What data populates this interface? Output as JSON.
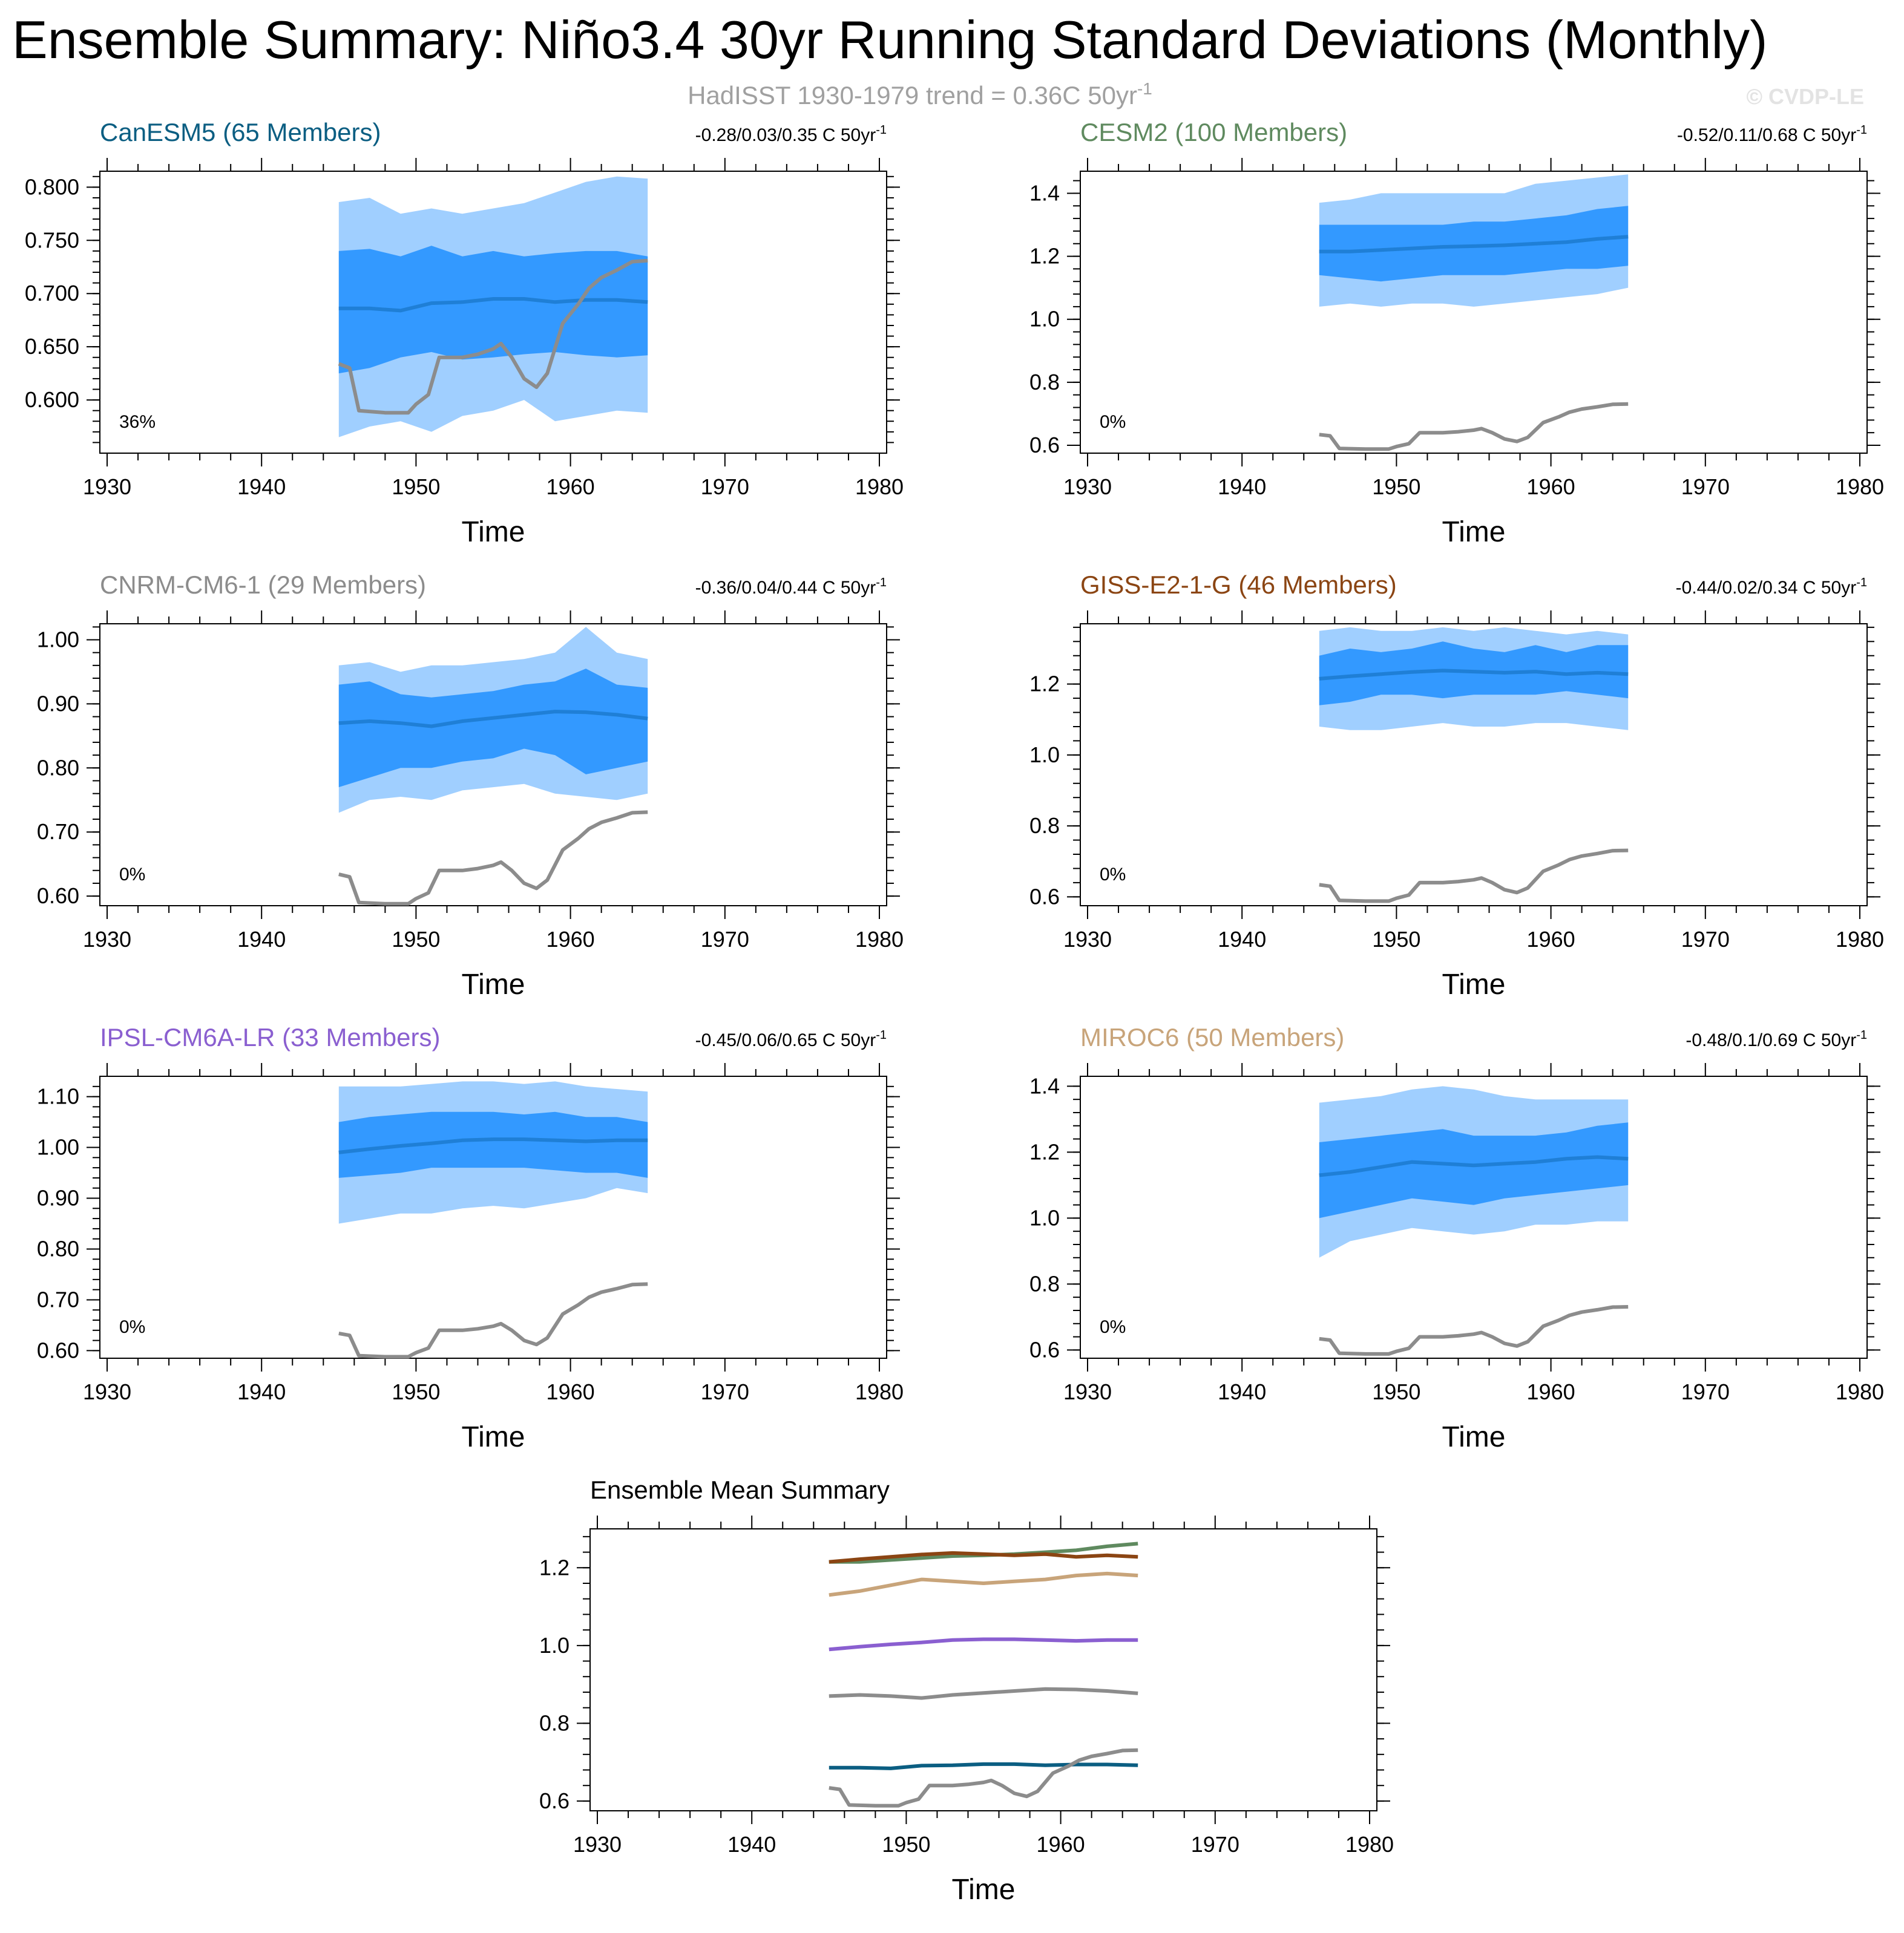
{
  "title": "Ensemble Summary: Niño3.4 30yr Running Standard Deviations (Monthly)",
  "subtitle": {
    "text": "HadISST 1930-1979 trend = 0.36C 50yr",
    "sup": "-1"
  },
  "copyright": "© CVDP-LE",
  "colors": {
    "outer_band": "#a0cfff",
    "inner_band": "#3399ff",
    "mean_line": "#1f7fd6",
    "obs_line": "#8c8c8c"
  },
  "xlabel": "Time",
  "chart_data": [
    {
      "type": "area",
      "title": "CanESM5 (65 Members)",
      "title_color": "#0b5e82",
      "trend_text": "-0.28/0.03/0.35 C 50yr",
      "trend_sup": "-1",
      "percent_label": "36%",
      "xlabel": "Time",
      "xlim": [
        1930,
        1980
      ],
      "xticks": [
        1930,
        1940,
        1950,
        1960,
        1970,
        1980
      ],
      "ylim": [
        0.55,
        0.815
      ],
      "yticks": [
        "0.800",
        "0.750",
        "0.700",
        "0.650",
        "0.600"
      ],
      "ytick_values": [
        0.8,
        0.75,
        0.7,
        0.65,
        0.6
      ],
      "x": [
        1945,
        1947,
        1949,
        1951,
        1953,
        1955,
        1957,
        1959,
        1961,
        1963,
        1965
      ],
      "outer_upper": [
        0.786,
        0.79,
        0.775,
        0.78,
        0.775,
        0.78,
        0.785,
        0.795,
        0.805,
        0.81,
        0.808
      ],
      "inner_upper": [
        0.74,
        0.742,
        0.735,
        0.745,
        0.735,
        0.74,
        0.735,
        0.738,
        0.74,
        0.74,
        0.735
      ],
      "ensemble_mean": [
        0.686,
        0.686,
        0.684,
        0.691,
        0.692,
        0.695,
        0.695,
        0.692,
        0.694,
        0.694,
        0.692
      ],
      "inner_lower": [
        0.625,
        0.63,
        0.64,
        0.645,
        0.638,
        0.64,
        0.643,
        0.645,
        0.642,
        0.64,
        0.642
      ],
      "outer_lower": [
        0.565,
        0.575,
        0.58,
        0.57,
        0.585,
        0.59,
        0.6,
        0.58,
        0.585,
        0.59,
        0.588
      ],
      "obs_x": [
        1945,
        1945.7,
        1946.3,
        1948,
        1949.5,
        1950,
        1950.8,
        1951.5,
        1953,
        1954,
        1955,
        1955.5,
        1956.2,
        1957,
        1957.8,
        1958.5,
        1959.5,
        1960.5,
        1961.2,
        1962,
        1963,
        1964,
        1965
      ],
      "obs_y": [
        0.634,
        0.63,
        0.59,
        0.588,
        0.588,
        0.596,
        0.605,
        0.64,
        0.64,
        0.643,
        0.648,
        0.653,
        0.64,
        0.62,
        0.612,
        0.625,
        0.672,
        0.69,
        0.705,
        0.715,
        0.722,
        0.73,
        0.731
      ]
    },
    {
      "type": "area",
      "title": "CESM2 (100 Members)",
      "title_color": "#5f8a5f",
      "trend_text": "-0.52/0.11/0.68 C 50yr",
      "trend_sup": "-1",
      "percent_label": "0%",
      "xlabel": "Time",
      "xlim": [
        1930,
        1980
      ],
      "xticks": [
        1930,
        1940,
        1950,
        1960,
        1970,
        1980
      ],
      "ylim": [
        0.575,
        1.47
      ],
      "yticks": [
        "1.4",
        "1.2",
        "1.0",
        "0.8",
        "0.6"
      ],
      "ytick_values": [
        1.4,
        1.2,
        1.0,
        0.8,
        0.6
      ],
      "x": [
        1945,
        1947,
        1949,
        1951,
        1953,
        1955,
        1957,
        1959,
        1961,
        1963,
        1965
      ],
      "outer_upper": [
        1.37,
        1.38,
        1.4,
        1.4,
        1.4,
        1.4,
        1.4,
        1.43,
        1.44,
        1.45,
        1.46
      ],
      "inner_upper": [
        1.3,
        1.3,
        1.3,
        1.3,
        1.3,
        1.31,
        1.31,
        1.32,
        1.33,
        1.35,
        1.36
      ],
      "ensemble_mean": [
        1.215,
        1.215,
        1.22,
        1.225,
        1.23,
        1.232,
        1.235,
        1.24,
        1.245,
        1.255,
        1.262
      ],
      "inner_lower": [
        1.14,
        1.13,
        1.12,
        1.13,
        1.14,
        1.14,
        1.14,
        1.15,
        1.16,
        1.16,
        1.17
      ],
      "outer_lower": [
        1.04,
        1.05,
        1.04,
        1.05,
        1.05,
        1.04,
        1.05,
        1.06,
        1.07,
        1.08,
        1.1
      ],
      "obs_x": [
        1945,
        1945.7,
        1946.3,
        1948,
        1949.5,
        1950,
        1950.8,
        1951.5,
        1953,
        1954,
        1955,
        1955.5,
        1956.2,
        1957,
        1957.8,
        1958.5,
        1959.5,
        1960.5,
        1961.2,
        1962,
        1963,
        1964,
        1965
      ],
      "obs_y": [
        0.634,
        0.63,
        0.59,
        0.588,
        0.588,
        0.596,
        0.605,
        0.64,
        0.64,
        0.643,
        0.648,
        0.653,
        0.64,
        0.62,
        0.612,
        0.625,
        0.672,
        0.69,
        0.705,
        0.715,
        0.722,
        0.73,
        0.731
      ]
    },
    {
      "type": "area",
      "title": "CNRM-CM6-1 (29 Members)",
      "title_color": "#8c8c8c",
      "trend_text": "-0.36/0.04/0.44 C 50yr",
      "trend_sup": "-1",
      "percent_label": "0%",
      "xlabel": "Time",
      "xlim": [
        1930,
        1980
      ],
      "xticks": [
        1930,
        1940,
        1950,
        1960,
        1970,
        1980
      ],
      "ylim": [
        0.585,
        1.025
      ],
      "yticks": [
        "1.00",
        "0.90",
        "0.80",
        "0.70",
        "0.60"
      ],
      "ytick_values": [
        1.0,
        0.9,
        0.8,
        0.7,
        0.6
      ],
      "x": [
        1945,
        1947,
        1949,
        1951,
        1953,
        1955,
        1957,
        1959,
        1961,
        1963,
        1965
      ],
      "outer_upper": [
        0.96,
        0.965,
        0.95,
        0.96,
        0.96,
        0.965,
        0.97,
        0.98,
        1.02,
        0.98,
        0.97
      ],
      "inner_upper": [
        0.93,
        0.935,
        0.915,
        0.91,
        0.915,
        0.92,
        0.93,
        0.935,
        0.955,
        0.93,
        0.925
      ],
      "ensemble_mean": [
        0.87,
        0.873,
        0.87,
        0.865,
        0.873,
        0.878,
        0.883,
        0.888,
        0.887,
        0.883,
        0.877
      ],
      "inner_lower": [
        0.77,
        0.785,
        0.8,
        0.8,
        0.81,
        0.815,
        0.83,
        0.82,
        0.79,
        0.8,
        0.81
      ],
      "outer_lower": [
        0.73,
        0.75,
        0.755,
        0.75,
        0.765,
        0.77,
        0.775,
        0.76,
        0.755,
        0.75,
        0.76
      ],
      "obs_x": [
        1945,
        1945.7,
        1946.3,
        1948,
        1949.5,
        1950,
        1950.8,
        1951.5,
        1953,
        1954,
        1955,
        1955.5,
        1956.2,
        1957,
        1957.8,
        1958.5,
        1959.5,
        1960.5,
        1961.2,
        1962,
        1963,
        1964,
        1965
      ],
      "obs_y": [
        0.634,
        0.63,
        0.59,
        0.588,
        0.588,
        0.596,
        0.605,
        0.64,
        0.64,
        0.643,
        0.648,
        0.653,
        0.64,
        0.62,
        0.612,
        0.625,
        0.672,
        0.69,
        0.705,
        0.715,
        0.722,
        0.73,
        0.731
      ]
    },
    {
      "type": "area",
      "title": "GISS-E2-1-G (46 Members)",
      "title_color": "#8b4513",
      "trend_text": "-0.44/0.02/0.34 C 50yr",
      "trend_sup": "-1",
      "percent_label": "0%",
      "xlabel": "Time",
      "xlim": [
        1930,
        1980
      ],
      "xticks": [
        1930,
        1940,
        1950,
        1960,
        1970,
        1980
      ],
      "ylim": [
        0.575,
        1.37
      ],
      "yticks": [
        "1.2",
        "1.0",
        "0.8",
        "0.6"
      ],
      "ytick_values": [
        1.2,
        1.0,
        0.8,
        0.6
      ],
      "x": [
        1945,
        1947,
        1949,
        1951,
        1953,
        1955,
        1957,
        1959,
        1961,
        1963,
        1965
      ],
      "outer_upper": [
        1.35,
        1.36,
        1.35,
        1.35,
        1.36,
        1.35,
        1.36,
        1.35,
        1.34,
        1.35,
        1.34
      ],
      "inner_upper": [
        1.28,
        1.3,
        1.29,
        1.3,
        1.32,
        1.3,
        1.29,
        1.31,
        1.29,
        1.31,
        1.31
      ],
      "ensemble_mean": [
        1.215,
        1.222,
        1.228,
        1.234,
        1.238,
        1.235,
        1.232,
        1.235,
        1.228,
        1.232,
        1.228
      ],
      "inner_lower": [
        1.14,
        1.15,
        1.17,
        1.17,
        1.16,
        1.17,
        1.17,
        1.17,
        1.18,
        1.17,
        1.16
      ],
      "outer_lower": [
        1.08,
        1.07,
        1.07,
        1.08,
        1.09,
        1.08,
        1.08,
        1.09,
        1.09,
        1.08,
        1.07
      ],
      "obs_x": [
        1945,
        1945.7,
        1946.3,
        1948,
        1949.5,
        1950,
        1950.8,
        1951.5,
        1953,
        1954,
        1955,
        1955.5,
        1956.2,
        1957,
        1957.8,
        1958.5,
        1959.5,
        1960.5,
        1961.2,
        1962,
        1963,
        1964,
        1965
      ],
      "obs_y": [
        0.634,
        0.63,
        0.59,
        0.588,
        0.588,
        0.596,
        0.605,
        0.64,
        0.64,
        0.643,
        0.648,
        0.653,
        0.64,
        0.62,
        0.612,
        0.625,
        0.672,
        0.69,
        0.705,
        0.715,
        0.722,
        0.73,
        0.731
      ]
    },
    {
      "type": "area",
      "title": "IPSL-CM6A-LR (33 Members)",
      "title_color": "#8a5fd0",
      "trend_text": "-0.45/0.06/0.65 C 50yr",
      "trend_sup": "-1",
      "percent_label": "0%",
      "xlabel": "Time",
      "xlim": [
        1930,
        1980
      ],
      "xticks": [
        1930,
        1940,
        1950,
        1960,
        1970,
        1980
      ],
      "ylim": [
        0.585,
        1.14
      ],
      "yticks": [
        "1.10",
        "1.00",
        "0.90",
        "0.80",
        "0.70",
        "0.60"
      ],
      "ytick_values": [
        1.1,
        1.0,
        0.9,
        0.8,
        0.7,
        0.6
      ],
      "x": [
        1945,
        1947,
        1949,
        1951,
        1953,
        1955,
        1957,
        1959,
        1961,
        1963,
        1965
      ],
      "outer_upper": [
        1.12,
        1.12,
        1.12,
        1.125,
        1.13,
        1.13,
        1.125,
        1.13,
        1.12,
        1.115,
        1.11
      ],
      "inner_upper": [
        1.05,
        1.06,
        1.065,
        1.07,
        1.07,
        1.07,
        1.065,
        1.07,
        1.06,
        1.06,
        1.05
      ],
      "ensemble_mean": [
        0.99,
        0.997,
        1.003,
        1.008,
        1.014,
        1.016,
        1.016,
        1.014,
        1.012,
        1.014,
        1.014
      ],
      "inner_lower": [
        0.94,
        0.945,
        0.95,
        0.96,
        0.96,
        0.96,
        0.96,
        0.955,
        0.95,
        0.95,
        0.94
      ],
      "outer_lower": [
        0.85,
        0.86,
        0.87,
        0.87,
        0.88,
        0.885,
        0.88,
        0.89,
        0.9,
        0.92,
        0.91
      ],
      "obs_x": [
        1945,
        1945.7,
        1946.3,
        1948,
        1949.5,
        1950,
        1950.8,
        1951.5,
        1953,
        1954,
        1955,
        1955.5,
        1956.2,
        1957,
        1957.8,
        1958.5,
        1959.5,
        1960.5,
        1961.2,
        1962,
        1963,
        1964,
        1965
      ],
      "obs_y": [
        0.634,
        0.63,
        0.59,
        0.588,
        0.588,
        0.596,
        0.605,
        0.64,
        0.64,
        0.643,
        0.648,
        0.653,
        0.64,
        0.62,
        0.612,
        0.625,
        0.672,
        0.69,
        0.705,
        0.715,
        0.722,
        0.73,
        0.731
      ]
    },
    {
      "type": "area",
      "title": "MIROC6 (50 Members)",
      "title_color": "#c8a47a",
      "trend_text": "-0.48/0.1/0.69 C 50yr",
      "trend_sup": "-1",
      "percent_label": "0%",
      "xlabel": "Time",
      "xlim": [
        1930,
        1980
      ],
      "xticks": [
        1930,
        1940,
        1950,
        1960,
        1970,
        1980
      ],
      "ylim": [
        0.575,
        1.43
      ],
      "yticks": [
        "1.4",
        "1.2",
        "1.0",
        "0.8",
        "0.6"
      ],
      "ytick_values": [
        1.4,
        1.2,
        1.0,
        0.8,
        0.6
      ],
      "x": [
        1945,
        1947,
        1949,
        1951,
        1953,
        1955,
        1957,
        1959,
        1961,
        1963,
        1965
      ],
      "outer_upper": [
        1.35,
        1.36,
        1.37,
        1.39,
        1.4,
        1.39,
        1.37,
        1.36,
        1.36,
        1.36,
        1.36
      ],
      "inner_upper": [
        1.23,
        1.24,
        1.25,
        1.26,
        1.27,
        1.25,
        1.25,
        1.25,
        1.26,
        1.28,
        1.29
      ],
      "ensemble_mean": [
        1.13,
        1.14,
        1.155,
        1.17,
        1.165,
        1.16,
        1.165,
        1.17,
        1.18,
        1.185,
        1.18
      ],
      "inner_lower": [
        1.0,
        1.02,
        1.04,
        1.06,
        1.05,
        1.04,
        1.06,
        1.07,
        1.08,
        1.09,
        1.1
      ],
      "outer_lower": [
        0.88,
        0.93,
        0.95,
        0.97,
        0.96,
        0.95,
        0.96,
        0.98,
        0.98,
        0.99,
        0.99
      ],
      "obs_x": [
        1945,
        1945.7,
        1946.3,
        1948,
        1949.5,
        1950,
        1950.8,
        1951.5,
        1953,
        1954,
        1955,
        1955.5,
        1956.2,
        1957,
        1957.8,
        1958.5,
        1959.5,
        1960.5,
        1961.2,
        1962,
        1963,
        1964,
        1965
      ],
      "obs_y": [
        0.634,
        0.63,
        0.59,
        0.588,
        0.588,
        0.596,
        0.605,
        0.64,
        0.64,
        0.643,
        0.648,
        0.653,
        0.64,
        0.62,
        0.612,
        0.625,
        0.672,
        0.69,
        0.705,
        0.715,
        0.722,
        0.73,
        0.731
      ]
    },
    {
      "type": "line",
      "title": "Ensemble Mean Summary",
      "title_color": "#000000",
      "xlabel": "Time",
      "xlim": [
        1930,
        1980
      ],
      "xticks": [
        1930,
        1940,
        1950,
        1960,
        1970,
        1980
      ],
      "ylim": [
        0.575,
        1.3
      ],
      "yticks": [
        "1.2",
        "1.0",
        "0.8",
        "0.6"
      ],
      "ytick_values": [
        1.2,
        1.0,
        0.8,
        0.6
      ],
      "x": [
        1945,
        1947,
        1949,
        1951,
        1953,
        1955,
        1957,
        1959,
        1961,
        1963,
        1965
      ],
      "series": [
        {
          "color": "#0b5e82",
          "values": [
            0.686,
            0.686,
            0.684,
            0.691,
            0.692,
            0.695,
            0.695,
            0.692,
            0.694,
            0.694,
            0.692
          ]
        },
        {
          "color": "#5f8a5f",
          "values": [
            1.215,
            1.215,
            1.22,
            1.225,
            1.23,
            1.232,
            1.235,
            1.24,
            1.245,
            1.255,
            1.262
          ]
        },
        {
          "color": "#8c8c8c",
          "values": [
            0.87,
            0.873,
            0.87,
            0.865,
            0.873,
            0.878,
            0.883,
            0.888,
            0.887,
            0.883,
            0.877
          ]
        },
        {
          "color": "#8b4513",
          "values": [
            1.215,
            1.222,
            1.228,
            1.234,
            1.238,
            1.235,
            1.232,
            1.235,
            1.228,
            1.232,
            1.228
          ]
        },
        {
          "color": "#8a5fd0",
          "values": [
            0.99,
            0.997,
            1.003,
            1.008,
            1.014,
            1.016,
            1.016,
            1.014,
            1.012,
            1.014,
            1.014
          ]
        },
        {
          "color": "#c8a47a",
          "values": [
            1.13,
            1.14,
            1.155,
            1.17,
            1.165,
            1.16,
            1.165,
            1.17,
            1.18,
            1.185,
            1.18
          ]
        }
      ],
      "obs_x": [
        1945,
        1945.7,
        1946.3,
        1948,
        1949.5,
        1950,
        1950.8,
        1951.5,
        1953,
        1954,
        1955,
        1955.5,
        1956.2,
        1957,
        1957.8,
        1958.5,
        1959.5,
        1960.5,
        1961.2,
        1962,
        1963,
        1964,
        1965
      ],
      "obs_y": [
        0.634,
        0.63,
        0.59,
        0.588,
        0.588,
        0.596,
        0.605,
        0.64,
        0.64,
        0.643,
        0.648,
        0.653,
        0.64,
        0.62,
        0.612,
        0.625,
        0.672,
        0.69,
        0.705,
        0.715,
        0.722,
        0.73,
        0.731
      ]
    }
  ]
}
